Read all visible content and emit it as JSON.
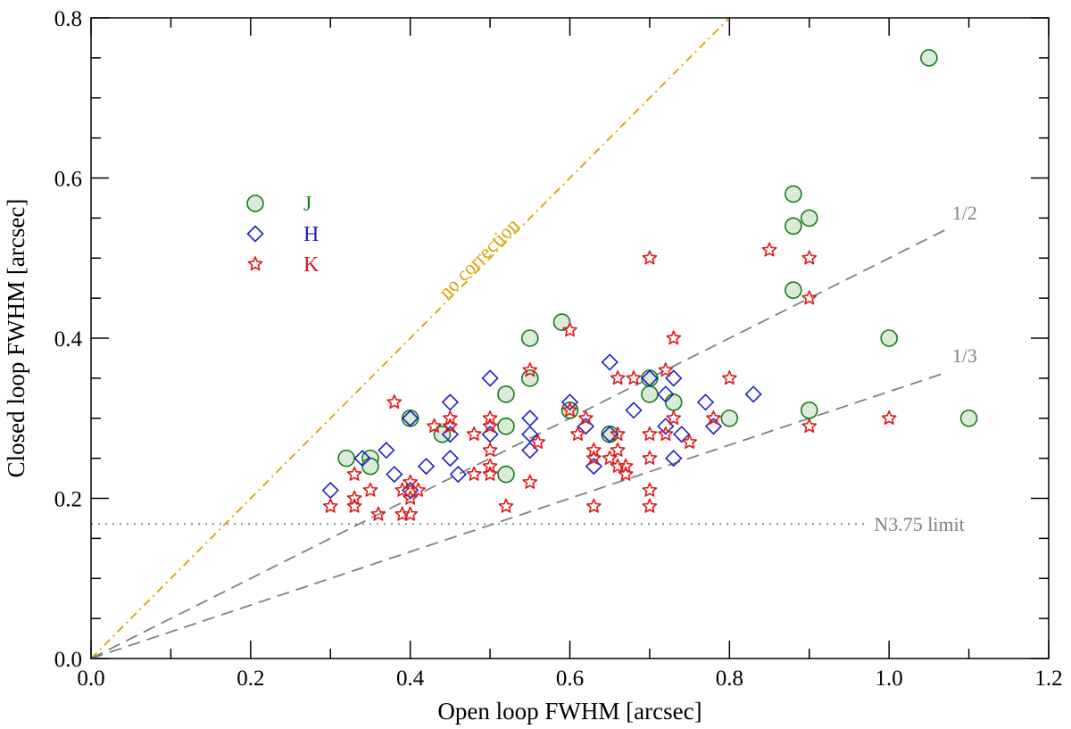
{
  "chart_data": {
    "type": "scatter",
    "title": "",
    "xlabel": "Open loop FWHM [arcsec]",
    "ylabel": "Closed loop FWHM [arcsec]",
    "xlim": [
      0.0,
      1.2
    ],
    "ylim": [
      0.0,
      0.8
    ],
    "x_ticks": [
      "0.0",
      "0.2",
      "0.4",
      "0.6",
      "0.8",
      "1.0",
      "1.2"
    ],
    "y_ticks": [
      "0.0",
      "0.2",
      "0.4",
      "0.6",
      "0.8"
    ],
    "x_tick_values": [
      0.0,
      0.2,
      0.4,
      0.6,
      0.8,
      1.0,
      1.2
    ],
    "y_tick_values": [
      0.0,
      0.2,
      0.4,
      0.6,
      0.8
    ],
    "minor_x_step": 0.1,
    "minor_y_step": 0.05,
    "grid": false,
    "legend_position": "upper-left",
    "series": [
      {
        "name": "J",
        "marker": "circle",
        "stroke": "#1a7a1a",
        "fill": "#d8ecd8",
        "points": [
          [
            0.32,
            0.25
          ],
          [
            0.35,
            0.25
          ],
          [
            0.35,
            0.24
          ],
          [
            0.4,
            0.3
          ],
          [
            0.44,
            0.28
          ],
          [
            0.52,
            0.33
          ],
          [
            0.52,
            0.29
          ],
          [
            0.52,
            0.23
          ],
          [
            0.55,
            0.4
          ],
          [
            0.55,
            0.35
          ],
          [
            0.59,
            0.42
          ],
          [
            0.6,
            0.31
          ],
          [
            0.65,
            0.28
          ],
          [
            0.7,
            0.35
          ],
          [
            0.7,
            0.33
          ],
          [
            0.73,
            0.32
          ],
          [
            0.8,
            0.3
          ],
          [
            0.88,
            0.58
          ],
          [
            0.88,
            0.54
          ],
          [
            0.88,
            0.46
          ],
          [
            0.9,
            0.55
          ],
          [
            0.9,
            0.31
          ],
          [
            1.0,
            0.4
          ],
          [
            1.05,
            0.75
          ],
          [
            1.1,
            0.3
          ]
        ]
      },
      {
        "name": "H",
        "marker": "diamond",
        "stroke": "#1f1fcc",
        "fill": "none",
        "points": [
          [
            0.3,
            0.21
          ],
          [
            0.34,
            0.25
          ],
          [
            0.37,
            0.26
          ],
          [
            0.38,
            0.23
          ],
          [
            0.4,
            0.3
          ],
          [
            0.4,
            0.21
          ],
          [
            0.42,
            0.24
          ],
          [
            0.45,
            0.32
          ],
          [
            0.45,
            0.28
          ],
          [
            0.45,
            0.25
          ],
          [
            0.46,
            0.23
          ],
          [
            0.5,
            0.35
          ],
          [
            0.5,
            0.28
          ],
          [
            0.55,
            0.3
          ],
          [
            0.55,
            0.28
          ],
          [
            0.55,
            0.26
          ],
          [
            0.6,
            0.32
          ],
          [
            0.62,
            0.29
          ],
          [
            0.63,
            0.24
          ],
          [
            0.65,
            0.37
          ],
          [
            0.65,
            0.28
          ],
          [
            0.68,
            0.31
          ],
          [
            0.7,
            0.35
          ],
          [
            0.72,
            0.33
          ],
          [
            0.72,
            0.29
          ],
          [
            0.73,
            0.35
          ],
          [
            0.73,
            0.25
          ],
          [
            0.74,
            0.28
          ],
          [
            0.77,
            0.32
          ],
          [
            0.78,
            0.29
          ],
          [
            0.83,
            0.33
          ]
        ]
      },
      {
        "name": "K",
        "marker": "star",
        "stroke": "#e01818",
        "fill": "none",
        "points": [
          [
            0.3,
            0.19
          ],
          [
            0.33,
            0.23
          ],
          [
            0.33,
            0.2
          ],
          [
            0.33,
            0.19
          ],
          [
            0.35,
            0.21
          ],
          [
            0.36,
            0.18
          ],
          [
            0.38,
            0.32
          ],
          [
            0.39,
            0.21
          ],
          [
            0.39,
            0.18
          ],
          [
            0.4,
            0.22
          ],
          [
            0.4,
            0.2
          ],
          [
            0.4,
            0.18
          ],
          [
            0.41,
            0.21
          ],
          [
            0.43,
            0.29
          ],
          [
            0.45,
            0.3
          ],
          [
            0.45,
            0.29
          ],
          [
            0.48,
            0.28
          ],
          [
            0.48,
            0.23
          ],
          [
            0.5,
            0.3
          ],
          [
            0.5,
            0.29
          ],
          [
            0.5,
            0.26
          ],
          [
            0.5,
            0.24
          ],
          [
            0.5,
            0.23
          ],
          [
            0.52,
            0.19
          ],
          [
            0.55,
            0.36
          ],
          [
            0.55,
            0.22
          ],
          [
            0.56,
            0.27
          ],
          [
            0.6,
            0.41
          ],
          [
            0.6,
            0.31
          ],
          [
            0.61,
            0.28
          ],
          [
            0.62,
            0.3
          ],
          [
            0.63,
            0.26
          ],
          [
            0.63,
            0.25
          ],
          [
            0.63,
            0.19
          ],
          [
            0.65,
            0.25
          ],
          [
            0.66,
            0.35
          ],
          [
            0.66,
            0.28
          ],
          [
            0.66,
            0.26
          ],
          [
            0.66,
            0.24
          ],
          [
            0.67,
            0.24
          ],
          [
            0.67,
            0.23
          ],
          [
            0.68,
            0.35
          ],
          [
            0.7,
            0.5
          ],
          [
            0.7,
            0.28
          ],
          [
            0.7,
            0.25
          ],
          [
            0.7,
            0.21
          ],
          [
            0.7,
            0.19
          ],
          [
            0.72,
            0.36
          ],
          [
            0.72,
            0.28
          ],
          [
            0.73,
            0.4
          ],
          [
            0.73,
            0.3
          ],
          [
            0.75,
            0.27
          ],
          [
            0.78,
            0.3
          ],
          [
            0.8,
            0.35
          ],
          [
            0.85,
            0.51
          ],
          [
            0.9,
            0.5
          ],
          [
            0.9,
            0.45
          ],
          [
            0.9,
            0.29
          ],
          [
            1.0,
            0.3
          ]
        ]
      }
    ],
    "reference_lines": [
      {
        "label": "no correction",
        "slope": 1,
        "x_end": 0.8,
        "style": "dash-dot",
        "color": "#d8a000"
      },
      {
        "label": "1/2",
        "slope": 0.5,
        "x_end": 1.07,
        "style": "dashed",
        "color": "#808080"
      },
      {
        "label": "1/3",
        "slope": 0.3333,
        "x_end": 1.07,
        "style": "dashed",
        "color": "#808080"
      },
      {
        "label": "N3.75 limit",
        "y": 0.168,
        "x_end": 0.97,
        "style": "dotted",
        "color": "#808080"
      }
    ]
  }
}
